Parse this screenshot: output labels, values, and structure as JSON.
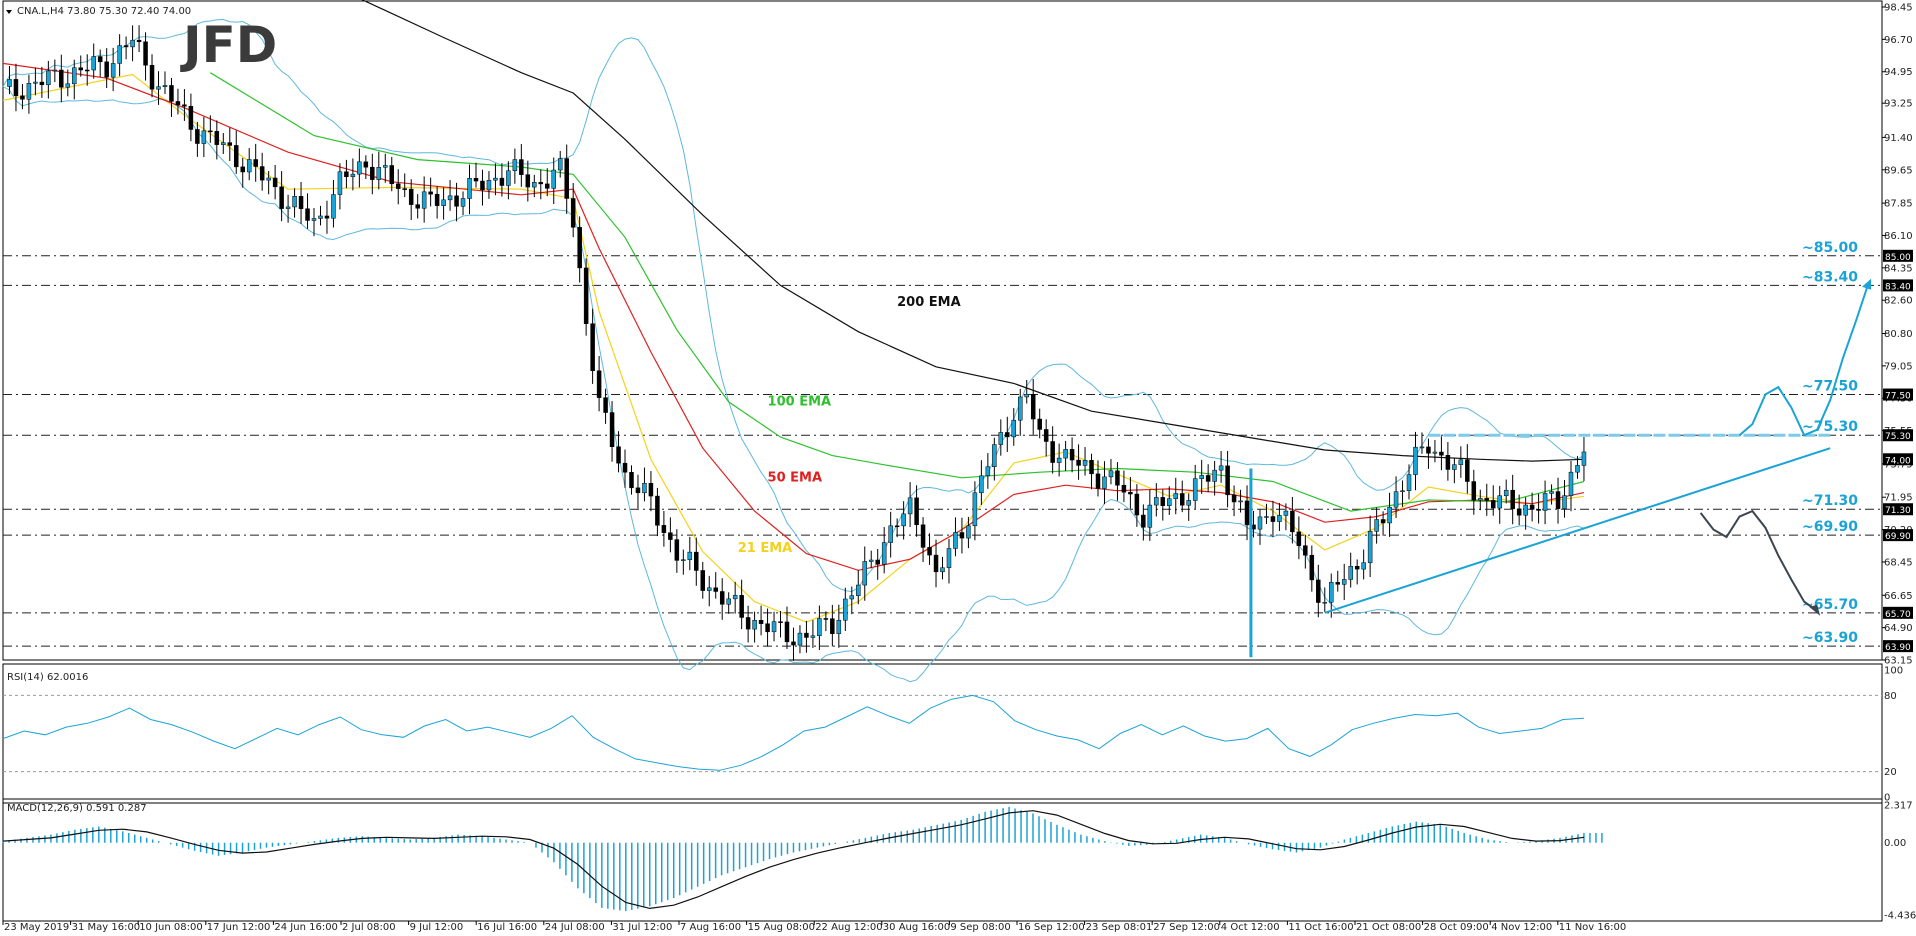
{
  "header": {
    "symbol_line": "CNA.L,H4  73.80 75.30 72.40 74.00",
    "logo": "JFD"
  },
  "chart_data": [
    {
      "type": "candlestick",
      "title": "CNA.L,H4  73.80 75.30 72.40 74.00",
      "ylim": [
        63.15,
        98.45
      ],
      "y_ticks": [
        "98.45",
        "96.70",
        "94.95",
        "93.25",
        "91.40",
        "89.65",
        "87.85",
        "86.10",
        "84.35",
        "82.60",
        "80.80",
        "79.05",
        "77.30",
        "75.55",
        "73.75",
        "71.95",
        "70.20",
        "68.45",
        "66.65",
        "64.90",
        "63.15"
      ],
      "x_tick_labels": [
        "23 May 2019",
        "31 May 16:00",
        "10 Jun 08:00",
        "17 Jun 12:00",
        "24 Jun 16:00",
        "2 Jul 08:00",
        "9 Jul 12:00",
        "16 Jul 16:00",
        "24 Jul 08:00",
        "31 Jul 12:00",
        "7 Aug 16:00",
        "15 Aug 08:00",
        "22 Aug 12:00",
        "30 Aug 16:00",
        "9 Sep 08:00",
        "16 Sep 12:00",
        "23 Sep 08:01",
        "27 Sep 12:00",
        "4 Oct 12:00",
        "11 Oct 16:00",
        "21 Oct 08:00",
        "28 Oct 09:00",
        "4 Nov 12:00",
        "11 Nov 16:00"
      ],
      "price_path": [
        [
          0,
          93.8
        ],
        [
          4,
          94.6
        ],
        [
          8,
          95.4
        ],
        [
          10,
          96.6
        ],
        [
          12,
          94.2
        ],
        [
          15,
          91.8
        ],
        [
          18,
          90.4
        ],
        [
          21,
          88.6
        ],
        [
          24,
          86.7
        ],
        [
          26,
          88.9
        ],
        [
          28,
          90.1
        ],
        [
          31,
          88.4
        ],
        [
          33,
          87.8
        ],
        [
          36,
          88.5
        ],
        [
          39,
          89.6
        ],
        [
          41,
          88.9
        ],
        [
          43,
          89.5
        ],
        [
          44,
          86.9
        ],
        [
          45,
          81.6
        ],
        [
          46,
          76.8
        ],
        [
          48,
          73.2
        ],
        [
          50,
          71.6
        ],
        [
          52,
          68.9
        ],
        [
          55,
          66.8
        ],
        [
          57,
          65.6
        ],
        [
          60,
          64.6
        ],
        [
          62,
          64.4
        ],
        [
          64,
          65.2
        ],
        [
          66,
          67.2
        ],
        [
          68,
          69.7
        ],
        [
          70,
          71.3
        ],
        [
          71,
          70.0
        ],
        [
          72,
          67.6
        ],
        [
          74,
          70.2
        ],
        [
          76,
          73.7
        ],
        [
          78,
          76.6
        ],
        [
          79,
          77.3
        ],
        [
          80,
          75.2
        ],
        [
          82,
          74.0
        ],
        [
          84,
          73.4
        ],
        [
          86,
          72.6
        ],
        [
          88,
          71.0
        ],
        [
          90,
          71.8
        ],
        [
          92,
          72.4
        ],
        [
          94,
          73.6
        ],
        [
          96,
          70.2
        ],
        [
          98,
          71.3
        ],
        [
          100,
          69.6
        ],
        [
          102,
          65.9
        ],
        [
          103,
          67.4
        ],
        [
          105,
          68.8
        ],
        [
          107,
          71.6
        ],
        [
          109,
          73.9
        ],
        [
          110,
          74.8
        ],
        [
          112,
          73.6
        ],
        [
          114,
          71.9
        ],
        [
          116,
          71.6
        ],
        [
          118,
          71.4
        ],
        [
          120,
          71.8
        ],
        [
          122,
          74.5
        ]
      ],
      "moving_averages": [
        {
          "name": "21 EMA",
          "color": "#f4d21c",
          "points": [
            [
              0,
              93.4
            ],
            [
              10,
              94.8
            ],
            [
              14,
              92.6
            ],
            [
              22,
              88.6
            ],
            [
              30,
              88.7
            ],
            [
              40,
              88.6
            ],
            [
              44,
              88.1
            ],
            [
              46,
              82.0
            ],
            [
              50,
              74.0
            ],
            [
              54,
              69.0
            ],
            [
              58,
              66.3
            ],
            [
              62,
              65.2
            ],
            [
              66,
              66.3
            ],
            [
              70,
              68.6
            ],
            [
              74,
              70.2
            ],
            [
              78,
              73.8
            ],
            [
              82,
              74.4
            ],
            [
              86,
              73.2
            ],
            [
              90,
              72.0
            ],
            [
              94,
              72.6
            ],
            [
              98,
              71.2
            ],
            [
              102,
              69.1
            ],
            [
              106,
              70.3
            ],
            [
              110,
              72.5
            ],
            [
              114,
              72.0
            ],
            [
              118,
              71.6
            ],
            [
              122,
              72.0
            ]
          ]
        },
        {
          "name": "50 EMA",
          "color": "#e02020",
          "points": [
            [
              0,
              95.4
            ],
            [
              8,
              94.6
            ],
            [
              14,
              93.0
            ],
            [
              22,
              90.6
            ],
            [
              30,
              89.0
            ],
            [
              40,
              88.3
            ],
            [
              44,
              88.6
            ],
            [
              46,
              85.4
            ],
            [
              50,
              79.8
            ],
            [
              54,
              74.6
            ],
            [
              58,
              71.2
            ],
            [
              62,
              68.9
            ],
            [
              66,
              68.0
            ],
            [
              70,
              68.6
            ],
            [
              74,
              70.2
            ],
            [
              78,
              72.1
            ],
            [
              82,
              72.6
            ],
            [
              86,
              72.3
            ],
            [
              90,
              72.4
            ],
            [
              94,
              72.2
            ],
            [
              98,
              71.7
            ],
            [
              102,
              70.6
            ],
            [
              106,
              70.9
            ],
            [
              110,
              71.7
            ],
            [
              114,
              71.8
            ],
            [
              118,
              71.6
            ],
            [
              122,
              72.2
            ]
          ]
        },
        {
          "name": "100 EMA",
          "color": "#2ec12e",
          "points": [
            [
              16,
              94.9
            ],
            [
              24,
              91.5
            ],
            [
              32,
              90.2
            ],
            [
              40,
              89.8
            ],
            [
              44,
              89.4
            ],
            [
              48,
              86.0
            ],
            [
              52,
              81.0
            ],
            [
              56,
              77.1
            ],
            [
              60,
              75.2
            ],
            [
              64,
              74.2
            ],
            [
              68,
              73.7
            ],
            [
              74,
              73.0
            ],
            [
              80,
              73.3
            ],
            [
              86,
              73.5
            ],
            [
              92,
              73.3
            ],
            [
              98,
              72.8
            ],
            [
              104,
              71.2
            ],
            [
              110,
              71.8
            ],
            [
              116,
              71.7
            ],
            [
              122,
              72.8
            ]
          ]
        },
        {
          "name": "200 EMA",
          "color": "#111111",
          "points": [
            [
              26,
              99.4
            ],
            [
              34,
              96.8
            ],
            [
              40,
              94.9
            ],
            [
              44,
              93.8
            ],
            [
              48,
              91.3
            ],
            [
              54,
              87.2
            ],
            [
              60,
              83.4
            ],
            [
              66,
              80.9
            ],
            [
              72,
              79.0
            ],
            [
              78,
              78.1
            ],
            [
              84,
              76.6
            ],
            [
              90,
              75.9
            ],
            [
              96,
              75.2
            ],
            [
              102,
              74.5
            ],
            [
              108,
              74.2
            ],
            [
              114,
              74.0
            ],
            [
              118,
              73.9
            ],
            [
              122,
              74.0
            ]
          ]
        }
      ],
      "indicator_labels": {
        "ema21": "21 EMA",
        "ema50": "50 EMA",
        "ema100": "100 EMA",
        "ema200": "200 EMA"
      },
      "horizontal_levels": [
        {
          "value": 85.0,
          "label": "~85.00",
          "tag": "85.00"
        },
        {
          "value": 83.4,
          "label": "~83.40",
          "tag": "83.40"
        },
        {
          "value": 77.5,
          "label": "~77.50",
          "tag": "77.50"
        },
        {
          "value": 75.3,
          "label": "~75.30",
          "tag": "75.30"
        },
        {
          "value": 71.3,
          "label": "~71.30",
          "tag": "71.30"
        },
        {
          "value": 69.9,
          "label": "~69.90",
          "tag": "69.90"
        },
        {
          "value": 65.7,
          "label": "~65.70",
          "tag": "65.70"
        },
        {
          "value": 63.9,
          "label": "~63.90",
          "tag": "63.90"
        }
      ],
      "current_price_tag": "74.00",
      "trendline": {
        "from": [
          102,
          65.7
        ],
        "to": [
          141,
          74.6
        ]
      },
      "resistance_segment": {
        "from": [
          110,
          75.3
        ],
        "to": [
          141,
          75.3
        ]
      },
      "colors": {
        "accent": "#1ca3d6",
        "scenario_down": "#3a4650",
        "level_text": "#1ca3d6"
      }
    },
    {
      "type": "line",
      "title": "RSI(14) 62.0016",
      "ylim": [
        0,
        100
      ],
      "y_ticks": [
        "100",
        "80",
        "20",
        "0"
      ],
      "values": [
        46,
        52,
        49,
        55,
        58,
        63,
        70,
        61,
        57,
        51,
        44,
        38,
        46,
        54,
        49,
        57,
        63,
        53,
        49,
        47,
        56,
        61,
        52,
        55,
        51,
        47,
        54,
        64,
        47,
        38,
        30,
        27,
        24,
        22,
        21,
        25,
        32,
        41,
        52,
        55,
        63,
        71,
        64,
        58,
        70,
        77,
        80,
        75,
        60,
        53,
        48,
        45,
        38,
        50,
        57,
        49,
        56,
        48,
        44,
        46,
        54,
        38,
        32,
        41,
        53,
        58,
        62,
        65,
        64,
        66,
        55,
        50,
        52,
        54,
        61,
        62
      ],
      "color": "#1ca3d6"
    },
    {
      "type": "bar",
      "title": "MACD(12,26,9) 0.591 0.287",
      "ylim": [
        -4.436,
        2.317
      ],
      "y_ticks": [
        "2.317",
        "0.00",
        "-4.436"
      ],
      "values": [
        0.1,
        0.3,
        0.5,
        0.8,
        1.0,
        0.7,
        0.3,
        -0.1,
        -0.5,
        -0.8,
        -0.6,
        -0.3,
        -0.1,
        0.1,
        0.3,
        0.4,
        0.3,
        0.2,
        0.3,
        0.5,
        0.4,
        0.2,
        0.0,
        -1.2,
        -2.8,
        -4.0,
        -4.2,
        -3.9,
        -3.4,
        -2.7,
        -2.0,
        -1.5,
        -1.0,
        -0.6,
        -0.3,
        0.0,
        0.3,
        0.6,
        0.8,
        1.1,
        1.4,
        1.9,
        2.2,
        1.8,
        1.1,
        0.5,
        0.1,
        -0.2,
        -0.1,
        0.2,
        0.5,
        0.3,
        -0.1,
        -0.4,
        -0.6,
        -0.3,
        0.2,
        0.6,
        1.0,
        1.3,
        1.1,
        0.6,
        0.2,
        0.0,
        0.1,
        0.3,
        0.6
      ],
      "signal_color": "#111111",
      "color": "#1ca3d6"
    }
  ]
}
